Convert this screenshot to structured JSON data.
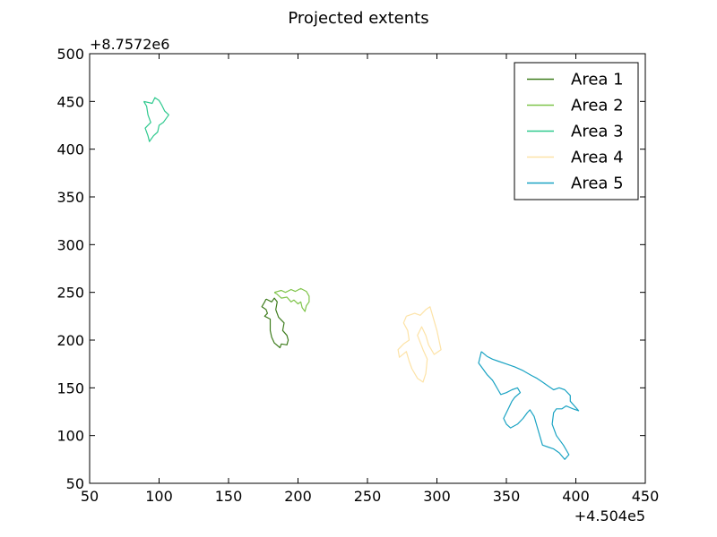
{
  "chart_data": {
    "type": "line",
    "title": "Projected extents",
    "xlabel": "",
    "ylabel": "",
    "x_offset_label": "+4.504e5",
    "y_offset_label": "+8.7572e6",
    "xlim": [
      50,
      450
    ],
    "ylim": [
      50,
      500
    ],
    "x_ticks": [
      50,
      100,
      150,
      200,
      250,
      300,
      350,
      400,
      450
    ],
    "y_ticks": [
      50,
      100,
      150,
      200,
      250,
      300,
      350,
      400,
      450,
      500
    ],
    "legend_position": "top-right",
    "grid": false,
    "series": [
      {
        "name": "Area 1",
        "color": "#3f7d1e",
        "points": [
          [
            177,
            243
          ],
          [
            181,
            240
          ],
          [
            183,
            244
          ],
          [
            185,
            240
          ],
          [
            184,
            232
          ],
          [
            186,
            224
          ],
          [
            190,
            218
          ],
          [
            189,
            210
          ],
          [
            192,
            205
          ],
          [
            193,
            200
          ],
          [
            192,
            195
          ],
          [
            188,
            196
          ],
          [
            187,
            192
          ],
          [
            183,
            197
          ],
          [
            181,
            203
          ],
          [
            180,
            210
          ],
          [
            180,
            222
          ],
          [
            176,
            225
          ],
          [
            178,
            228
          ],
          [
            177,
            232
          ],
          [
            174,
            235
          ],
          [
            176,
            240
          ],
          [
            177,
            243
          ]
        ]
      },
      {
        "name": "Area 2",
        "color": "#7fc44a",
        "points": [
          [
            183,
            250
          ],
          [
            188,
            252
          ],
          [
            191,
            250
          ],
          [
            195,
            253
          ],
          [
            198,
            251
          ],
          [
            202,
            254
          ],
          [
            206,
            251
          ],
          [
            208,
            246
          ],
          [
            208,
            240
          ],
          [
            206,
            236
          ],
          [
            205,
            230
          ],
          [
            203,
            234
          ],
          [
            202,
            240
          ],
          [
            200,
            238
          ],
          [
            197,
            242
          ],
          [
            195,
            240
          ],
          [
            192,
            245
          ],
          [
            188,
            244
          ],
          [
            185,
            248
          ],
          [
            183,
            250
          ]
        ]
      },
      {
        "name": "Area 3",
        "color": "#2ec98e",
        "points": [
          [
            89,
            450
          ],
          [
            95,
            448
          ],
          [
            97,
            454
          ],
          [
            100,
            451
          ],
          [
            102,
            446
          ],
          [
            104,
            440
          ],
          [
            107,
            436
          ],
          [
            103,
            428
          ],
          [
            100,
            425
          ],
          [
            99,
            418
          ],
          [
            96,
            414
          ],
          [
            93,
            408
          ],
          [
            92,
            414
          ],
          [
            90,
            422
          ],
          [
            94,
            428
          ],
          [
            92,
            436
          ],
          [
            91,
            445
          ],
          [
            89,
            450
          ]
        ]
      },
      {
        "name": "Area 4",
        "color": "#fde3a7",
        "points": [
          [
            278,
            225
          ],
          [
            284,
            228
          ],
          [
            288,
            226
          ],
          [
            292,
            232
          ],
          [
            295,
            235
          ],
          [
            297,
            225
          ],
          [
            300,
            210
          ],
          [
            303,
            190
          ],
          [
            298,
            185
          ],
          [
            294,
            195
          ],
          [
            292,
            205
          ],
          [
            289,
            214
          ],
          [
            286,
            205
          ],
          [
            290,
            190
          ],
          [
            293,
            180
          ],
          [
            292,
            165
          ],
          [
            290,
            156
          ],
          [
            286,
            160
          ],
          [
            282,
            170
          ],
          [
            280,
            178
          ],
          [
            278,
            188
          ],
          [
            273,
            182
          ],
          [
            272,
            190
          ],
          [
            276,
            196
          ],
          [
            280,
            200
          ],
          [
            279,
            210
          ],
          [
            276,
            218
          ],
          [
            278,
            225
          ]
        ]
      },
      {
        "name": "Area 5",
        "color": "#1aa3c3",
        "points": [
          [
            332,
            188
          ],
          [
            336,
            183
          ],
          [
            340,
            180
          ],
          [
            344,
            178
          ],
          [
            350,
            175
          ],
          [
            356,
            172
          ],
          [
            362,
            168
          ],
          [
            368,
            163
          ],
          [
            372,
            160
          ],
          [
            376,
            156
          ],
          [
            380,
            152
          ],
          [
            384,
            148
          ],
          [
            388,
            150
          ],
          [
            392,
            148
          ],
          [
            396,
            142
          ],
          [
            396,
            136
          ],
          [
            402,
            126
          ],
          [
            398,
            128
          ],
          [
            393,
            131
          ],
          [
            390,
            128
          ],
          [
            386,
            128
          ],
          [
            384,
            124
          ],
          [
            383,
            112
          ],
          [
            386,
            100
          ],
          [
            391,
            90
          ],
          [
            395,
            80
          ],
          [
            392,
            75
          ],
          [
            388,
            82
          ],
          [
            384,
            86
          ],
          [
            380,
            88
          ],
          [
            376,
            90
          ],
          [
            374,
            100
          ],
          [
            372,
            110
          ],
          [
            370,
            120
          ],
          [
            367,
            127
          ],
          [
            365,
            124
          ],
          [
            362,
            118
          ],
          [
            358,
            112
          ],
          [
            353,
            108
          ],
          [
            350,
            112
          ],
          [
            348,
            118
          ],
          [
            350,
            124
          ],
          [
            352,
            130
          ],
          [
            354,
            136
          ],
          [
            356,
            140
          ],
          [
            360,
            145
          ],
          [
            358,
            150
          ],
          [
            354,
            148
          ],
          [
            350,
            145
          ],
          [
            346,
            143
          ],
          [
            344,
            148
          ],
          [
            342,
            153
          ],
          [
            340,
            158
          ],
          [
            336,
            164
          ],
          [
            333,
            170
          ],
          [
            330,
            176
          ],
          [
            332,
            188
          ]
        ]
      }
    ]
  }
}
